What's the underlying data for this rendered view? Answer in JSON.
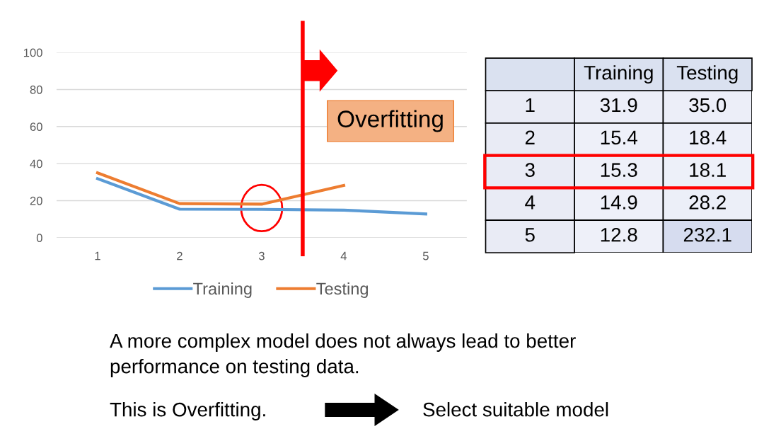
{
  "chart_data": [
    {
      "type": "line",
      "x": [
        1,
        2,
        3,
        4,
        5
      ],
      "series": [
        {
          "name": "Training",
          "color": "#5b9bd5",
          "values": [
            31.9,
            15.4,
            15.3,
            14.9,
            12.8
          ]
        },
        {
          "name": "Testing",
          "color": "#ed7d31",
          "values": [
            35.0,
            18.4,
            18.1,
            28.2,
            null
          ]
        }
      ],
      "xlim": [
        0.5,
        5.5
      ],
      "xticks": [
        1,
        2,
        3,
        4,
        5
      ],
      "ylim": [
        0,
        100
      ],
      "yticks": [
        0,
        20,
        40,
        60,
        80,
        100
      ],
      "grid": "y",
      "legend": "bottom",
      "marker": "none",
      "line_style": "solid",
      "ref_lines": [
        {
          "axis": "x",
          "value": 3.5,
          "color": "#ff0000"
        }
      ],
      "annotations": [
        "Overfitting",
        "A more complex model does not always lead to better performance on testing data.",
        "This is Overfitting.",
        "Select suitable model"
      ]
    },
    {
      "type": "heatmap",
      "categories": [
        "Training",
        "Testing"
      ],
      "y_categories": [
        "1",
        "2",
        "3",
        "4",
        "5"
      ],
      "cells": [
        [
          31.9,
          35.0
        ],
        [
          15.4,
          18.4
        ],
        [
          15.3,
          18.1
        ],
        [
          14.9,
          28.2
        ],
        [
          12.8,
          232.1
        ]
      ],
      "cell_labels": [
        [
          "31.9",
          "35.0"
        ],
        [
          "15.4",
          "18.4"
        ],
        [
          "15.3",
          "18.1"
        ],
        [
          "14.9",
          "28.2"
        ],
        [
          "12.8",
          "232.1"
        ]
      ],
      "data_labels": true
    }
  ]
}
